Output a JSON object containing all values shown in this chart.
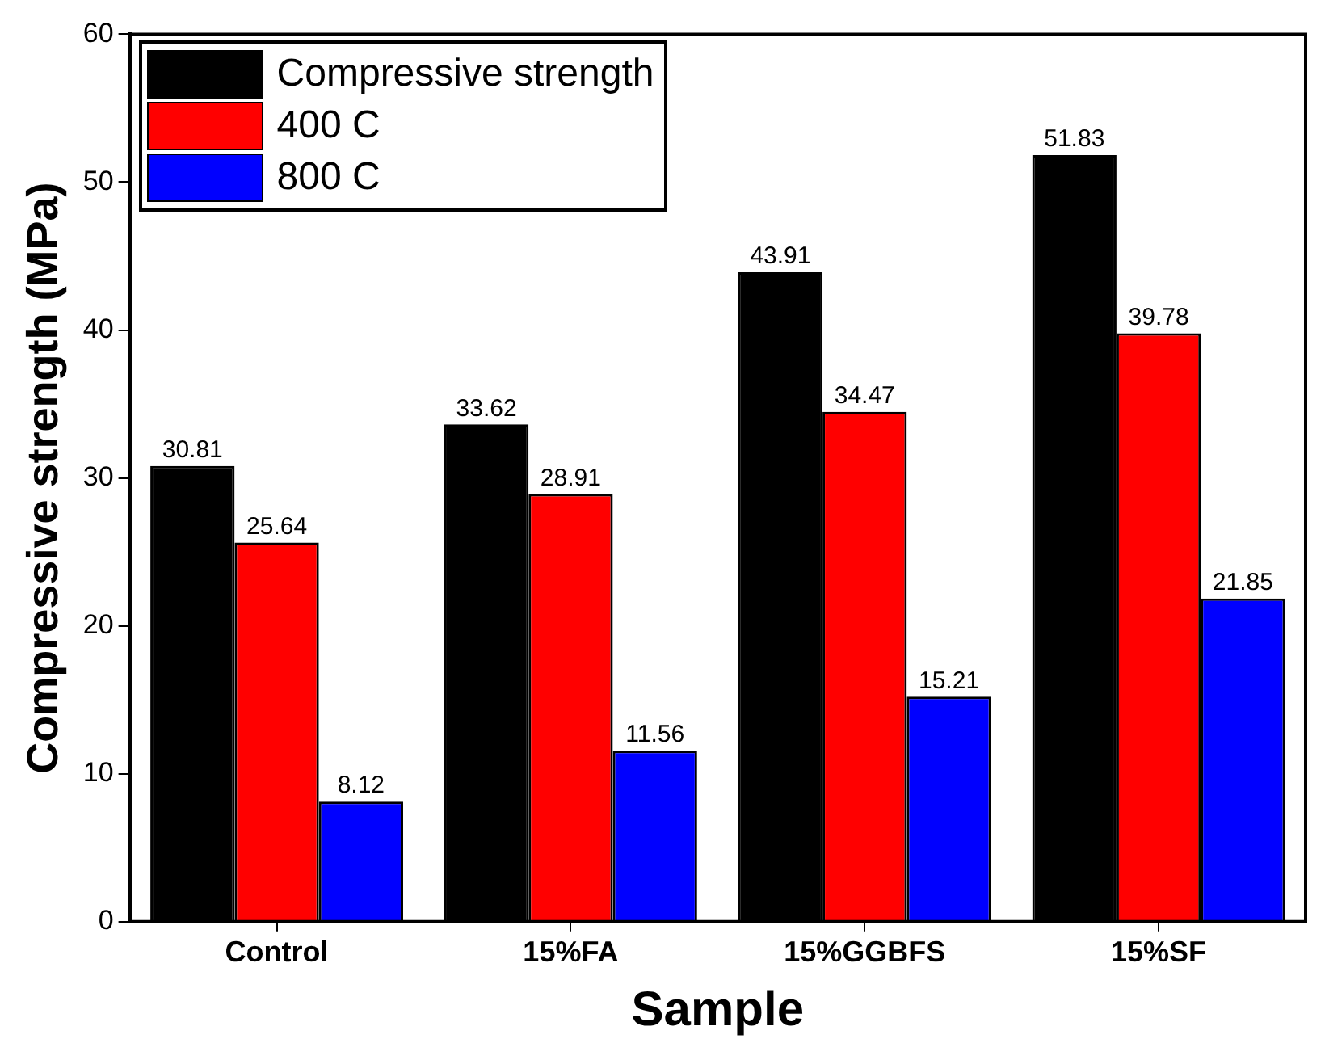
{
  "chart_data": {
    "type": "bar",
    "xlabel": "Sample",
    "ylabel": "Compressive strength (MPa)",
    "categories": [
      "Control",
      "15%FA",
      "15%GGBFS",
      "15%SF"
    ],
    "series": [
      {
        "name": "Compressive strength",
        "color": "#000000",
        "values": [
          30.81,
          33.62,
          43.91,
          51.83
        ]
      },
      {
        "name": "400 C",
        "color": "#ff0000",
        "values": [
          25.64,
          28.91,
          34.47,
          39.78
        ]
      },
      {
        "name": "800 C",
        "color": "#0000ff",
        "values": [
          8.12,
          11.56,
          15.21,
          21.85
        ]
      }
    ],
    "ylim": [
      0,
      60
    ],
    "yticks": [
      0,
      10,
      20,
      30,
      40,
      50,
      60
    ],
    "grid": false,
    "legend": "top left",
    "data_labels": true
  }
}
